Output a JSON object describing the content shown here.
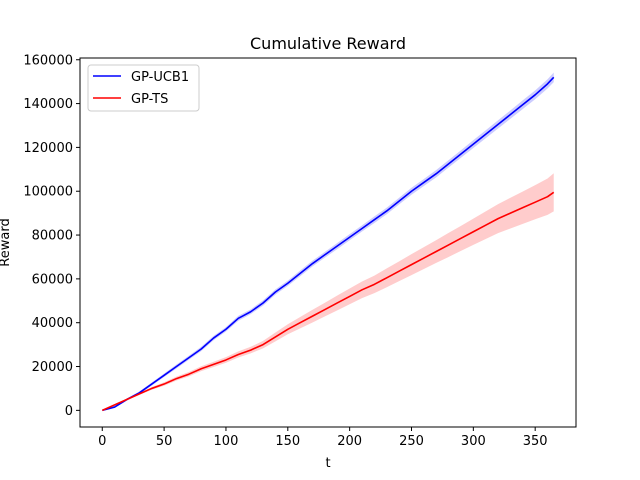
{
  "chart_data": {
    "type": "line",
    "title": "Cumulative Reward",
    "xlabel": "t",
    "ylabel": "Reward",
    "xlim": [
      -18,
      383
    ],
    "ylim": [
      -7600,
      160800
    ],
    "xticks": [
      0,
      50,
      100,
      150,
      200,
      250,
      300,
      350
    ],
    "yticks": [
      0,
      20000,
      40000,
      60000,
      80000,
      100000,
      120000,
      140000,
      160000
    ],
    "xtick_labels": [
      "0",
      "50",
      "100",
      "150",
      "200",
      "250",
      "300",
      "350"
    ],
    "ytick_labels": [
      "0",
      "20000",
      "40000",
      "60000",
      "80000",
      "100000",
      "120000",
      "140000",
      "160000"
    ],
    "grid": false,
    "legend_position": "upper left",
    "series": [
      {
        "name": "GP-UCB1",
        "color": "#0000ff",
        "x": [
          0,
          10,
          20,
          30,
          40,
          50,
          60,
          70,
          80,
          90,
          100,
          110,
          115,
          120,
          130,
          140,
          150,
          160,
          170,
          180,
          190,
          200,
          210,
          220,
          230,
          240,
          250,
          260,
          270,
          280,
          290,
          300,
          310,
          320,
          330,
          340,
          350,
          360,
          365
        ],
        "y": [
          0,
          1500,
          5000,
          8000,
          12000,
          16000,
          20000,
          24000,
          28000,
          33000,
          37000,
          42000,
          43500,
          45000,
          49000,
          54000,
          58000,
          62500,
          67000,
          71000,
          75000,
          79000,
          83000,
          87000,
          91000,
          95500,
          100000,
          104000,
          108000,
          112500,
          117000,
          121500,
          126000,
          130500,
          135000,
          139500,
          144000,
          149000,
          152000
        ],
        "band": [
          0,
          300,
          500,
          600,
          700,
          800,
          900,
          900,
          1000,
          1000,
          1000,
          1100,
          1100,
          1100,
          1200,
          1200,
          1200,
          1300,
          1300,
          1300,
          1400,
          1400,
          1400,
          1500,
          1500,
          1500,
          1600,
          1600,
          1700,
          1700,
          1700,
          1800,
          1800,
          1900,
          1900,
          2000,
          2000,
          2100,
          2200
        ]
      },
      {
        "name": "GP-TS",
        "color": "#ff0000",
        "x": [
          0,
          10,
          20,
          30,
          40,
          50,
          60,
          70,
          80,
          90,
          100,
          110,
          120,
          130,
          140,
          150,
          160,
          170,
          180,
          190,
          200,
          210,
          220,
          230,
          240,
          250,
          260,
          270,
          280,
          290,
          300,
          310,
          320,
          330,
          340,
          350,
          360,
          365
        ],
        "y": [
          0,
          2500,
          5000,
          7500,
          10000,
          12000,
          14500,
          16500,
          19000,
          21000,
          23000,
          25500,
          27500,
          30000,
          33500,
          37000,
          40000,
          43000,
          46000,
          49000,
          52000,
          55000,
          57500,
          60500,
          63500,
          66500,
          69500,
          72500,
          75500,
          78500,
          81500,
          84500,
          87500,
          90000,
          92500,
          95000,
          97500,
          99500
        ],
        "band": [
          0,
          200,
          400,
          500,
          600,
          800,
          900,
          1000,
          1100,
          1200,
          1300,
          1400,
          1500,
          1700,
          2000,
          2300,
          2600,
          2900,
          3100,
          3400,
          3600,
          3800,
          4000,
          4300,
          4500,
          4800,
          5000,
          5200,
          5500,
          5700,
          6000,
          6300,
          6600,
          7000,
          7400,
          7800,
          8300,
          8700
        ]
      }
    ]
  }
}
